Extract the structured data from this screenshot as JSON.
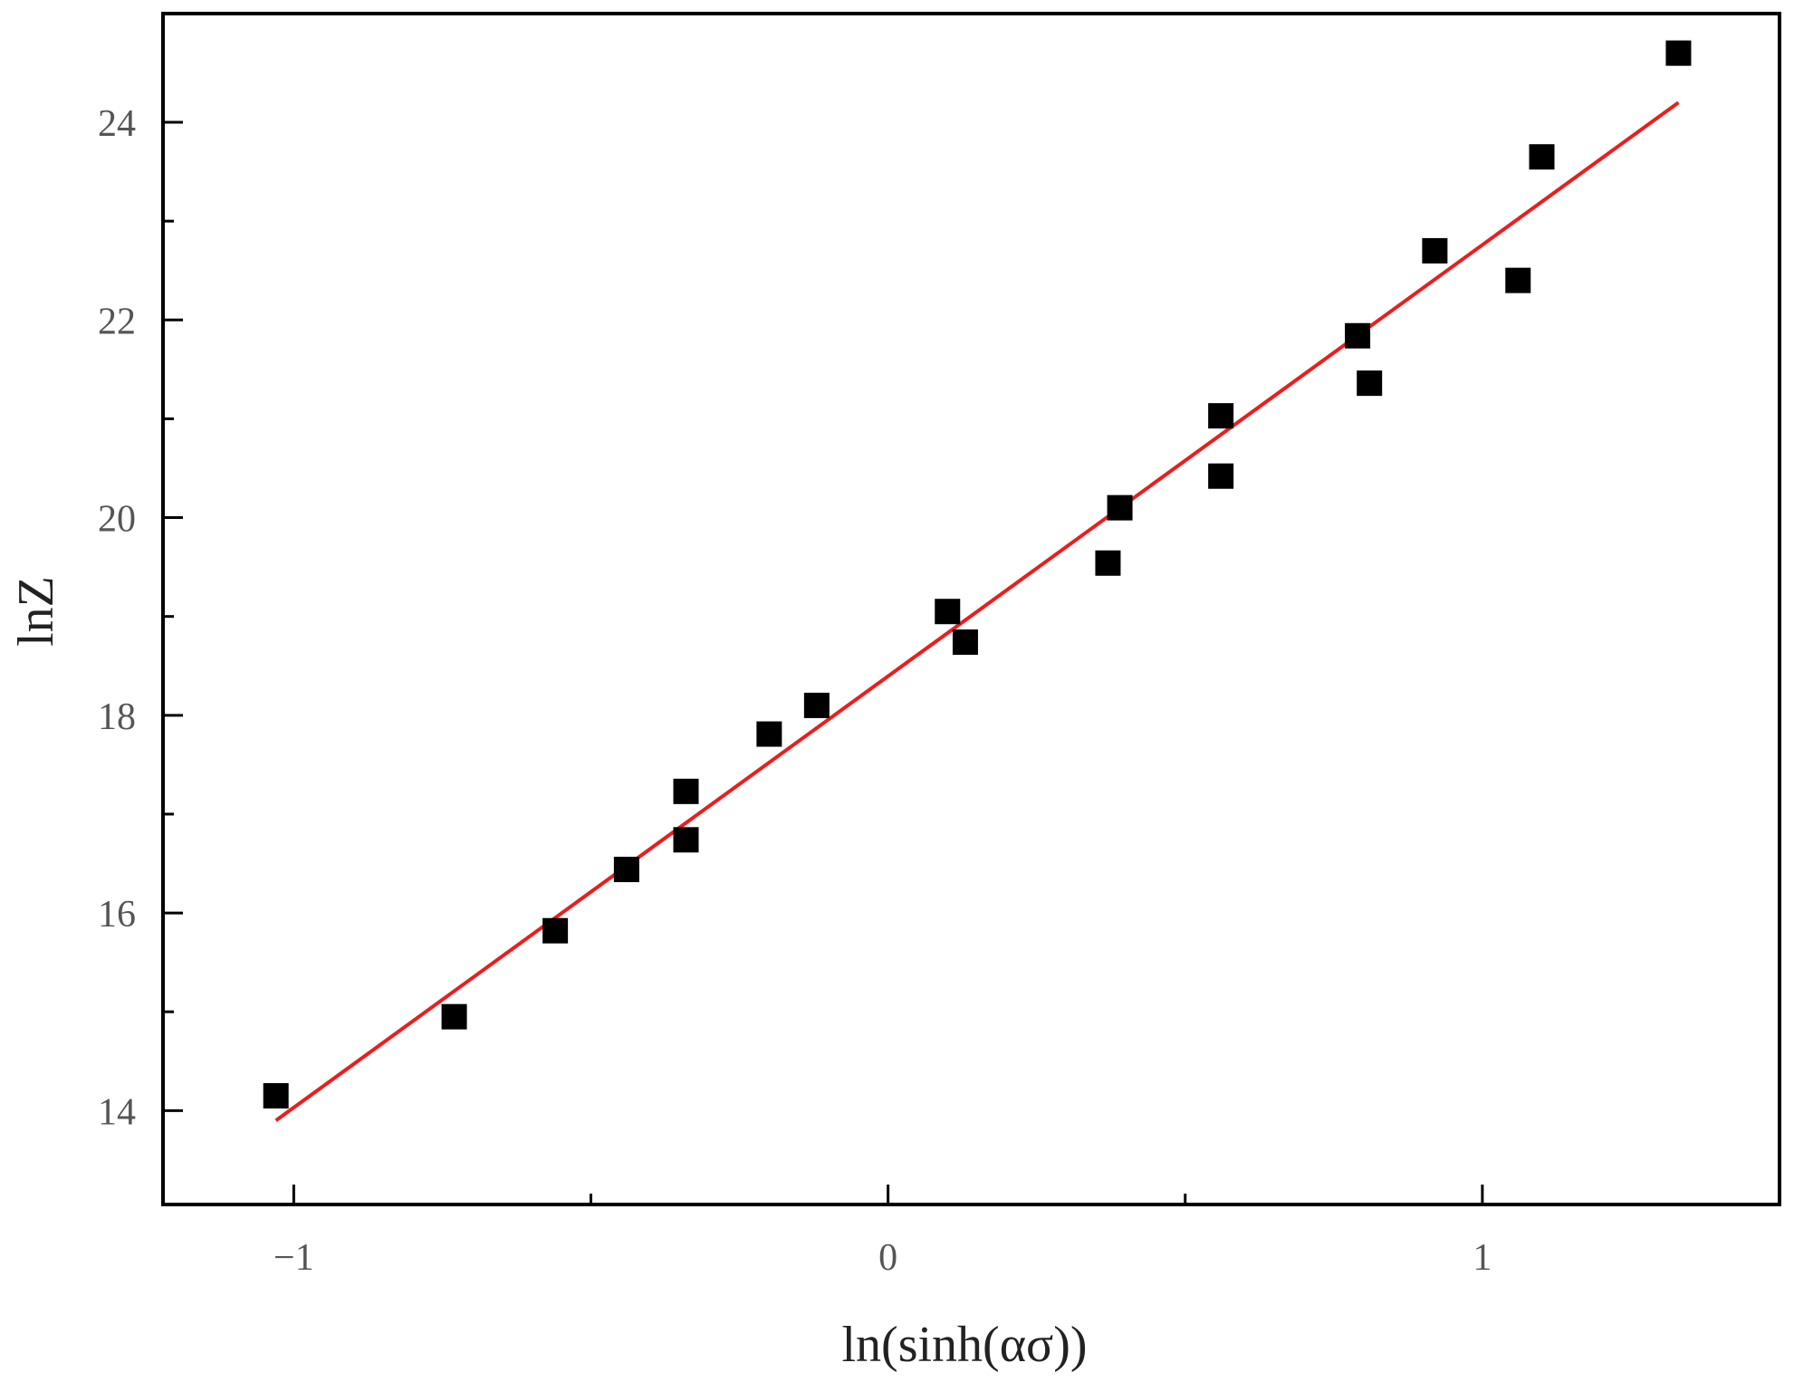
{
  "chart_data": {
    "type": "scatter",
    "title": "",
    "xlabel": "ln(sinh(ασ))",
    "ylabel": "lnZ",
    "xlim": [
      -1.22,
      1.5
    ],
    "ylim": [
      13.05,
      25.1
    ],
    "xticks": [
      -1,
      0,
      1
    ],
    "xtick_labels": [
      "−1",
      "0",
      "1"
    ],
    "xticks_minor": [
      -0.5,
      0.5,
      1.5
    ],
    "yticks": [
      14,
      16,
      18,
      20,
      22,
      24
    ],
    "ytick_labels": [
      "14",
      "16",
      "18",
      "20",
      "22",
      "24"
    ],
    "yticks_minor": [
      15,
      17,
      19,
      21,
      23
    ],
    "grid": false,
    "legend": "none",
    "series": [
      {
        "marker": "square",
        "color": "#000000",
        "points": [
          {
            "x": -1.03,
            "y": 14.15
          },
          {
            "x": -0.73,
            "y": 14.95
          },
          {
            "x": -0.56,
            "y": 15.82
          },
          {
            "x": -0.44,
            "y": 16.44
          },
          {
            "x": -0.34,
            "y": 17.23
          },
          {
            "x": -0.34,
            "y": 16.74
          },
          {
            "x": -0.2,
            "y": 17.81
          },
          {
            "x": -0.12,
            "y": 18.1
          },
          {
            "x": 0.1,
            "y": 19.05
          },
          {
            "x": 0.13,
            "y": 18.74
          },
          {
            "x": 0.37,
            "y": 19.54
          },
          {
            "x": 0.39,
            "y": 20.1
          },
          {
            "x": 0.56,
            "y": 20.42
          },
          {
            "x": 0.56,
            "y": 21.03
          },
          {
            "x": 0.79,
            "y": 21.84
          },
          {
            "x": 0.81,
            "y": 21.36
          },
          {
            "x": 0.92,
            "y": 22.7
          },
          {
            "x": 1.06,
            "y": 22.4
          },
          {
            "x": 1.1,
            "y": 23.65
          },
          {
            "x": 1.33,
            "y": 24.7
          }
        ]
      }
    ],
    "fit_line": {
      "color": "#ee1c1c",
      "x": [
        -1.03,
        1.33
      ],
      "y": [
        13.9,
        24.2
      ]
    }
  }
}
